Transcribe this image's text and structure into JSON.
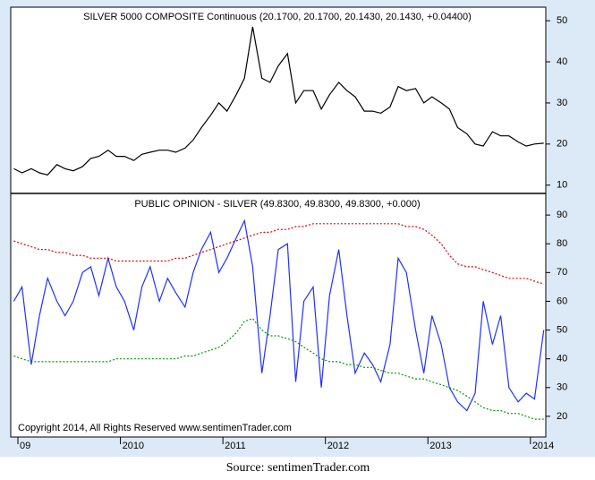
{
  "chart_data": [
    {
      "type": "line",
      "title": "SILVER 5000 COMPOSITE Continuous (20.1700, 20.1700, 20.1430, 20.1430, +0.04400)",
      "x": [
        2008.96,
        2009.04,
        2009.13,
        2009.21,
        2009.29,
        2009.38,
        2009.46,
        2009.54,
        2009.63,
        2009.71,
        2009.79,
        2009.88,
        2009.96,
        2010.04,
        2010.13,
        2010.21,
        2010.29,
        2010.38,
        2010.46,
        2010.54,
        2010.63,
        2010.71,
        2010.79,
        2010.88,
        2010.96,
        2011.04,
        2011.13,
        2011.21,
        2011.29,
        2011.38,
        2011.46,
        2011.54,
        2011.63,
        2011.71,
        2011.79,
        2011.88,
        2011.96,
        2012.04,
        2012.13,
        2012.21,
        2012.29,
        2012.38,
        2012.46,
        2012.54,
        2012.63,
        2012.71,
        2012.79,
        2012.88,
        2012.96,
        2013.04,
        2013.13,
        2013.21,
        2013.29,
        2013.38,
        2013.46,
        2013.54,
        2013.63,
        2013.71,
        2013.79,
        2013.88,
        2013.96,
        2014.04,
        2014.13
      ],
      "series": [
        {
          "name": "SILVER 5000 COMPOSITE",
          "color": "#000000",
          "dashed": false,
          "values": [
            14,
            13,
            14,
            13,
            12.5,
            15,
            14,
            13.5,
            14.5,
            16.5,
            17,
            18.5,
            17,
            17,
            16,
            17.5,
            18,
            18.5,
            18.5,
            18,
            19,
            21,
            24,
            27,
            30,
            28,
            32,
            36,
            48.5,
            36,
            35,
            39,
            42,
            30,
            33,
            33,
            28.5,
            32,
            35,
            33,
            31.5,
            28,
            28,
            27.5,
            29,
            34,
            33,
            33.5,
            30,
            31.5,
            30,
            28.5,
            24,
            22.5,
            20,
            19.5,
            23,
            22,
            22,
            20.5,
            19.5,
            20,
            20.2
          ]
        }
      ],
      "xlim": [
        2008.93,
        2014.15
      ],
      "ylim": [
        8.2,
        53.3
      ],
      "yticks": [
        10,
        20,
        30,
        40,
        50
      ]
    },
    {
      "type": "line",
      "title": "PUBLIC OPINION - SILVER (49.8300, 49.8300, 49.8300, +0.000)",
      "annotation": "Copyright 2014, All Rights Reserved  www.sentimenTrader.com",
      "x": [
        2008.96,
        2009.04,
        2009.13,
        2009.21,
        2009.29,
        2009.38,
        2009.46,
        2009.54,
        2009.63,
        2009.71,
        2009.79,
        2009.88,
        2009.96,
        2010.04,
        2010.13,
        2010.21,
        2010.29,
        2010.38,
        2010.46,
        2010.54,
        2010.63,
        2010.71,
        2010.79,
        2010.88,
        2010.96,
        2011.04,
        2011.13,
        2011.21,
        2011.29,
        2011.38,
        2011.46,
        2011.54,
        2011.63,
        2011.71,
        2011.79,
        2011.88,
        2011.96,
        2012.04,
        2012.13,
        2012.21,
        2012.29,
        2012.38,
        2012.46,
        2012.54,
        2012.63,
        2012.71,
        2012.79,
        2012.88,
        2012.96,
        2013.04,
        2013.13,
        2013.21,
        2013.29,
        2013.38,
        2013.46,
        2013.54,
        2013.63,
        2013.71,
        2013.79,
        2013.88,
        2013.96,
        2014.04,
        2014.13
      ],
      "series": [
        {
          "name": "PUBLIC OPINION",
          "color": "#2030ff",
          "dashed": false,
          "values": [
            60,
            65,
            38,
            55,
            68,
            60,
            55,
            60,
            70,
            72,
            62,
            75,
            65,
            60,
            50,
            65,
            72,
            60,
            68,
            63,
            58,
            70,
            78,
            84,
            70,
            75,
            82,
            88,
            72,
            35,
            55,
            78,
            80,
            32,
            60,
            65,
            30,
            62,
            78,
            55,
            35,
            42,
            38,
            32,
            45,
            75,
            70,
            50,
            35,
            55,
            45,
            30,
            25,
            22,
            28,
            60,
            45,
            55,
            30,
            25,
            28,
            26,
            50
          ]
        },
        {
          "name": "Upper band",
          "color": "#e00000",
          "dashed": true,
          "values": [
            81,
            80,
            79,
            78,
            78,
            77,
            77,
            76,
            76,
            75,
            75,
            75,
            74,
            74,
            74,
            74,
            74,
            74,
            74,
            75,
            75,
            76,
            77,
            78,
            79,
            80,
            81,
            82,
            83,
            84,
            84,
            85,
            85,
            86,
            86,
            87,
            87,
            87,
            87,
            87,
            87,
            87,
            87,
            87,
            87,
            87,
            86,
            86,
            85,
            83,
            80,
            76,
            73,
            72,
            72,
            71,
            70,
            69,
            68,
            68,
            68,
            67,
            66
          ]
        },
        {
          "name": "Lower band",
          "color": "#009900",
          "dashed": true,
          "values": [
            41,
            40,
            39,
            39,
            39,
            39,
            39,
            39,
            39,
            39,
            39,
            39,
            40,
            40,
            40,
            40,
            40,
            40,
            40,
            40,
            41,
            41,
            42,
            43,
            44,
            46,
            49,
            53,
            54,
            50,
            48,
            48,
            47,
            46,
            44,
            42,
            40,
            39,
            39,
            38,
            38,
            37,
            37,
            36,
            35,
            35,
            34,
            33,
            33,
            32,
            31,
            30,
            29,
            27,
            25,
            23,
            22,
            22,
            21,
            21,
            20,
            19,
            19
          ]
        }
      ],
      "xlim": [
        2008.93,
        2014.15
      ],
      "xticks": [
        {
          "value": 2009,
          "label": "09"
        },
        2010,
        2011,
        2012,
        2013,
        2014
      ],
      "ylim": [
        12.8,
        97.2
      ],
      "yticks": [
        20,
        30,
        40,
        50,
        60,
        70,
        80,
        90
      ]
    }
  ],
  "source": "Source: sentimenTrader.com"
}
